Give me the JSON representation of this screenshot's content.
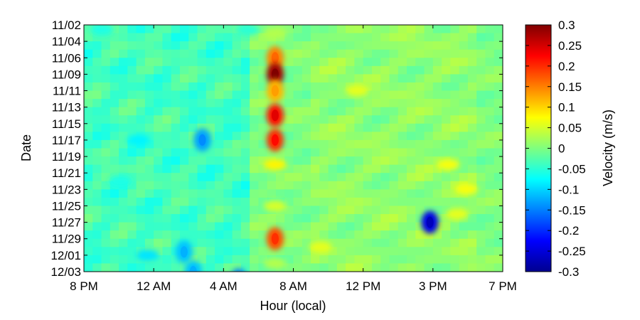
{
  "chart_data": {
    "type": "heatmap",
    "title": "",
    "xlabel": "Hour (local)",
    "ylabel": "Date",
    "colorbar_label": "Velocity (m/s)",
    "colormap": "jet",
    "x_tick_labels": [
      "8 PM",
      "12 AM",
      "4 AM",
      "8 AM",
      "12 PM",
      "3 PM",
      "7 PM"
    ],
    "y_tick_labels": [
      "11/02",
      "11/04",
      "11/06",
      "11/09",
      "11/11",
      "11/13",
      "11/15",
      "11/17",
      "11/19",
      "11/21",
      "11/23",
      "11/25",
      "11/27",
      "11/29",
      "12/01",
      "12/03"
    ],
    "colorbar_ticks": [
      0.3,
      0.25,
      0.2,
      0.15,
      0.1,
      0.05,
      0,
      -0.05,
      -0.1,
      -0.15,
      -0.2,
      -0.25,
      -0.3
    ],
    "clim": [
      -0.3,
      0.3
    ],
    "grid": false,
    "features": [
      {
        "hour_index": 10.5,
        "date_index": 0.5,
        "value": 0.03
      },
      {
        "hour_index": 10.5,
        "date_index": 2.0,
        "value": 0.15
      },
      {
        "hour_index": 10.5,
        "date_index": 3.0,
        "value": 0.28
      },
      {
        "hour_index": 10.5,
        "date_index": 4.0,
        "value": 0.12
      },
      {
        "hour_index": 10.5,
        "date_index": 5.5,
        "value": 0.22
      },
      {
        "hour_index": 10.5,
        "date_index": 7.0,
        "value": 0.2
      },
      {
        "hour_index": 10.5,
        "date_index": 8.5,
        "value": 0.08
      },
      {
        "hour_index": 10.5,
        "date_index": 11.0,
        "value": 0.05
      },
      {
        "hour_index": 10.5,
        "date_index": 13.0,
        "value": 0.18
      },
      {
        "hour_index": 10.5,
        "date_index": 14.5,
        "value": 0.03
      },
      {
        "hour_index": 20.0,
        "date_index": 8.5,
        "value": 0.07
      },
      {
        "hour_index": 21.0,
        "date_index": 10.0,
        "value": 0.07
      },
      {
        "hour_index": 20.5,
        "date_index": 11.5,
        "value": 0.06
      },
      {
        "hour_index": 15.0,
        "date_index": 4.0,
        "value": 0.06
      },
      {
        "hour_index": 13.0,
        "date_index": 13.5,
        "value": 0.06
      },
      {
        "hour_index": 6.5,
        "date_index": 7.0,
        "value": -0.13
      },
      {
        "hour_index": 3.0,
        "date_index": 7.0,
        "value": -0.08
      },
      {
        "hour_index": 19.0,
        "date_index": 12.0,
        "value": -0.24
      },
      {
        "hour_index": 8.5,
        "date_index": 15.5,
        "value": -0.15
      },
      {
        "hour_index": 6.0,
        "date_index": 15.0,
        "value": -0.11
      },
      {
        "hour_index": 3.5,
        "date_index": 14.0,
        "value": -0.09
      },
      {
        "hour_index": 1.0,
        "date_index": 0.3,
        "value": -0.06
      },
      {
        "hour_index": 9.0,
        "date_index": 0.3,
        "value": -0.05
      },
      {
        "hour_index": 5.5,
        "date_index": 13.8,
        "value": -0.11
      },
      {
        "hour_index": 2.0,
        "date_index": 9.5,
        "value": -0.06
      }
    ]
  }
}
